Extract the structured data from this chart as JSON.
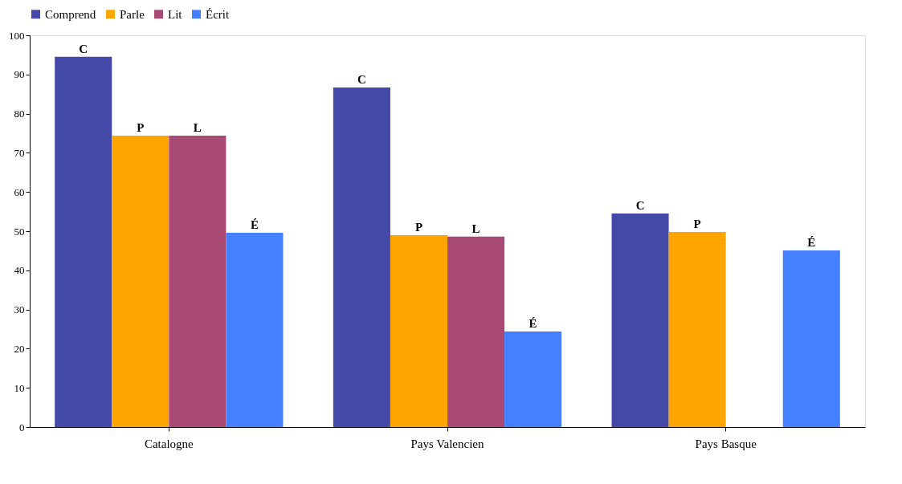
{
  "chart_data": {
    "type": "bar",
    "categories": [
      "Catalogne",
      "Pays Valencien",
      "Pays Basque"
    ],
    "series": [
      {
        "name": "Comprend",
        "color": "#4449a8",
        "values": [
          94.5,
          86.7,
          54.5
        ],
        "value_labels": [
          "C",
          "C",
          "C"
        ]
      },
      {
        "name": "Parle",
        "color": "#ffa500",
        "values": [
          74.4,
          49.0,
          49.8
        ],
        "value_labels": [
          "P",
          "P",
          "P"
        ]
      },
      {
        "name": "Lit",
        "color": "#a84a74",
        "values": [
          74.4,
          48.6,
          null
        ],
        "value_labels": [
          "L",
          "L",
          null
        ]
      },
      {
        "name": "Écrit",
        "color": "#4480ff",
        "values": [
          49.6,
          24.4,
          45.1
        ],
        "value_labels": [
          "É",
          "É",
          "É"
        ]
      }
    ],
    "ylim": [
      0,
      100
    ],
    "yticks": [
      0,
      10,
      20,
      30,
      40,
      50,
      60,
      70,
      80,
      90,
      100
    ],
    "grid": false,
    "legend": "top"
  }
}
